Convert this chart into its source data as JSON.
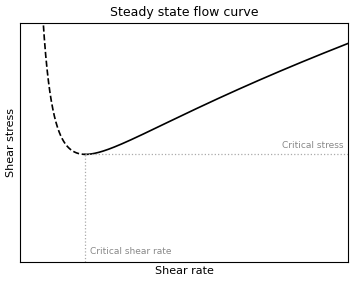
{
  "title": "Steady state flow curve",
  "xlabel": "Shear rate",
  "ylabel": "Shear stress",
  "critical_shear_rate_label": "Critical shear rate",
  "critical_stress_label": "Critical stress",
  "line_color": "black",
  "dotted_line_color": "#aaaaaa",
  "background_color": "#ffffff",
  "xlim": [
    0,
    10
  ],
  "ylim": [
    0,
    10
  ],
  "critical_x": 2.0,
  "critical_y": 4.5,
  "dashed_x_start": 0.3,
  "dashed_x_end": 2.0,
  "solid_x_start": 2.0,
  "solid_x_end": 10.0,
  "A_exp": 2.0,
  "B_exp": 0.6,
  "title_fontsize": 9,
  "label_fontsize": 8,
  "annot_fontsize": 6.5,
  "annot_color": "#888888"
}
